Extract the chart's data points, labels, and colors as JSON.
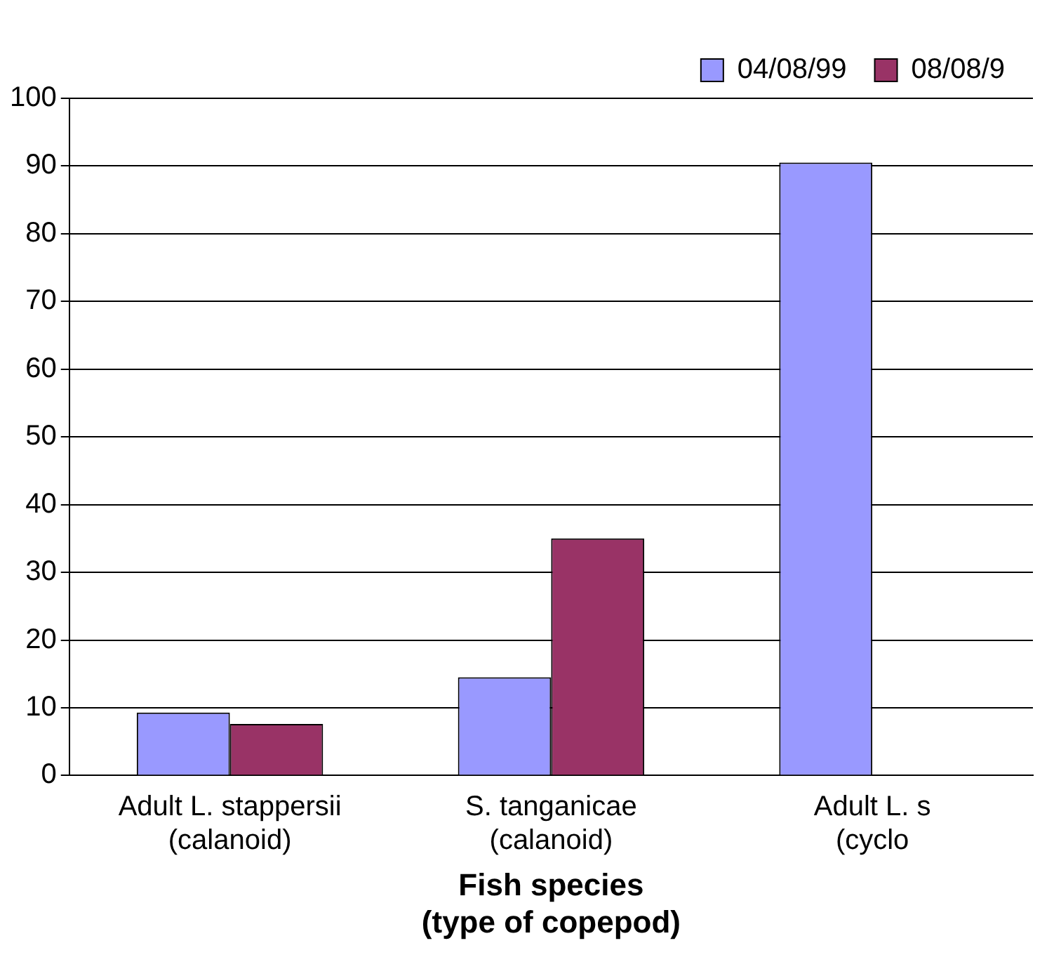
{
  "chart_data": {
    "type": "bar",
    "categories": [
      "Adult L. stappersii\n(calanoid)",
      "S. tanganicae\n(calanoid)",
      "Adult L. s\n(cyclo"
    ],
    "series": [
      {
        "name": "04/08/99",
        "color": "#9999ff",
        "values": [
          9.3,
          14.5,
          90.5
        ]
      },
      {
        "name": "08/08/9",
        "color": "#993366",
        "values": [
          7.6,
          35,
          null
        ]
      }
    ],
    "xlabel": "Fish species\n(type of copepod)",
    "ylim": [
      0,
      100
    ],
    "yticks": [
      0,
      10,
      20,
      30,
      40,
      50,
      60,
      70,
      80,
      90,
      100
    ],
    "grid": "y",
    "legend": "top right"
  }
}
